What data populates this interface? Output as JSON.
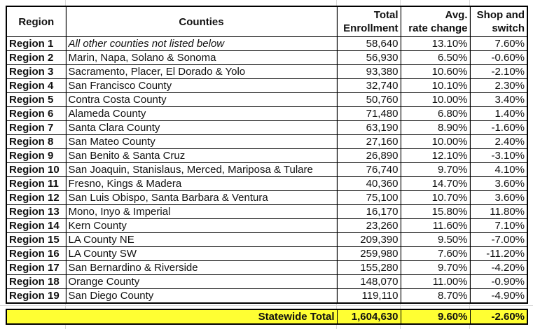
{
  "headers": {
    "region": "Region",
    "counties": "Counties",
    "enrollment_1": "Total",
    "enrollment_2": "Enrollment",
    "rate_1": "Avg.",
    "rate_2": "rate change",
    "shop_1": "Shop and",
    "shop_2": "switch"
  },
  "rows": [
    {
      "region": "Region 1",
      "counties": "All other counties not listed below",
      "enrollment": "58,640",
      "rate": "13.10%",
      "shop": "7.60%"
    },
    {
      "region": "Region 2",
      "counties": "Marin, Napa, Solano & Sonoma",
      "enrollment": "56,930",
      "rate": "6.50%",
      "shop": "-0.60%"
    },
    {
      "region": "Region 3",
      "counties": "Sacramento, Placer, El Dorado & Yolo",
      "enrollment": "93,380",
      "rate": "10.60%",
      "shop": "-2.10%"
    },
    {
      "region": "Region 4",
      "counties": "San Francisco County",
      "enrollment": "32,740",
      "rate": "10.10%",
      "shop": "2.30%"
    },
    {
      "region": "Region 5",
      "counties": "Contra Costa County",
      "enrollment": "50,760",
      "rate": "10.00%",
      "shop": "3.40%"
    },
    {
      "region": "Region 6",
      "counties": "Alameda County",
      "enrollment": "71,480",
      "rate": "6.80%",
      "shop": "1.40%"
    },
    {
      "region": "Region 7",
      "counties": "Santa Clara County",
      "enrollment": "63,190",
      "rate": "8.90%",
      "shop": "-1.60%"
    },
    {
      "region": "Region 8",
      "counties": "San Mateo County",
      "enrollment": "27,160",
      "rate": "10.00%",
      "shop": "2.40%"
    },
    {
      "region": "Region 9",
      "counties": "San Benito & Santa Cruz",
      "enrollment": "26,890",
      "rate": "12.10%",
      "shop": "-3.10%"
    },
    {
      "region": "Region 10",
      "counties": "San Joaquin, Stanislaus, Merced, Mariposa & Tulare",
      "enrollment": "76,740",
      "rate": "9.70%",
      "shop": "4.10%"
    },
    {
      "region": "Region 11",
      "counties": "Fresno, Kings & Madera",
      "enrollment": "40,360",
      "rate": "14.70%",
      "shop": "3.60%"
    },
    {
      "region": "Region 12",
      "counties": "San Luis Obispo, Santa Barbara & Ventura",
      "enrollment": "75,100",
      "rate": "10.70%",
      "shop": "3.60%"
    },
    {
      "region": "Region 13",
      "counties": "Mono, Inyo & Imperial",
      "enrollment": "16,170",
      "rate": "15.80%",
      "shop": "11.80%"
    },
    {
      "region": "Region 14",
      "counties": "Kern County",
      "enrollment": "23,260",
      "rate": "11.60%",
      "shop": "7.10%"
    },
    {
      "region": "Region 15",
      "counties": "LA County NE",
      "enrollment": "209,390",
      "rate": "9.50%",
      "shop": "-7.00%"
    },
    {
      "region": "Region 16",
      "counties": "LA County SW",
      "enrollment": "259,980",
      "rate": "7.60%",
      "shop": "-11.20%"
    },
    {
      "region": "Region 17",
      "counties": "San Bernardino & Riverside",
      "enrollment": "155,280",
      "rate": "9.70%",
      "shop": "-4.20%"
    },
    {
      "region": "Region 18",
      "counties": "Orange County",
      "enrollment": "148,070",
      "rate": "11.00%",
      "shop": "-0.90%"
    },
    {
      "region": "Region 19",
      "counties": "San Diego County",
      "enrollment": "119,110",
      "rate": "8.70%",
      "shop": "-4.90%"
    }
  ],
  "total": {
    "label": "Statewide Total",
    "enrollment": "1,604,630",
    "rate": "9.60%",
    "shop": "-2.60%"
  },
  "colors": {
    "total_highlight": "#ffff33",
    "gridline": "#d9d9d9"
  }
}
